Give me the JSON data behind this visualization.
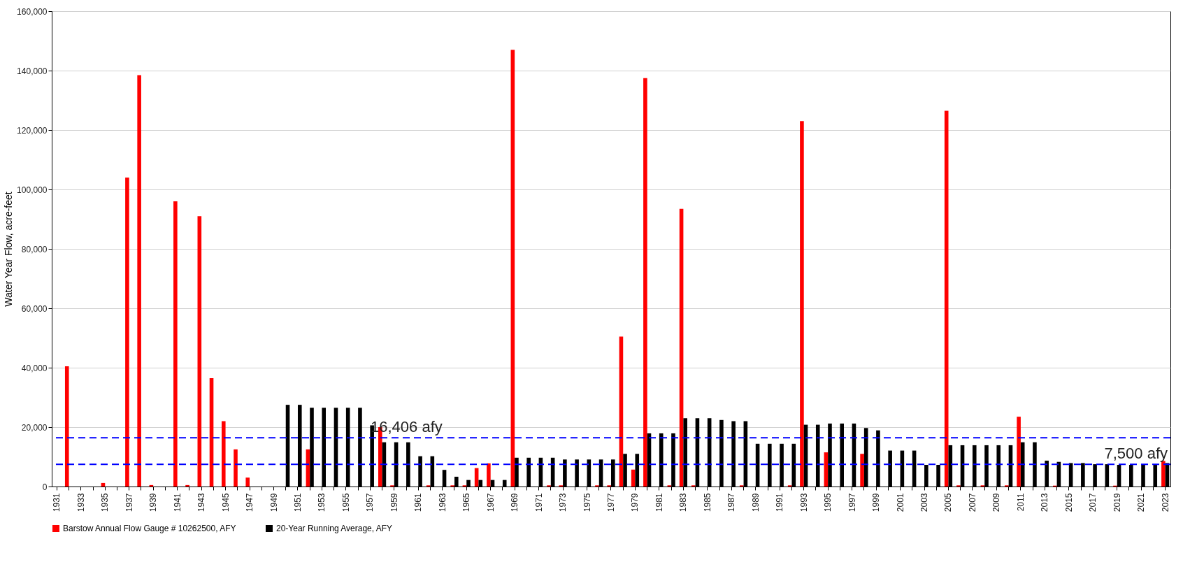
{
  "chart_data": {
    "type": "bar",
    "ylabel": "Water Year Flow, acre-feet",
    "categories": [
      "1931",
      null,
      "1933",
      null,
      "1935",
      null,
      "1937",
      null,
      "1939",
      null,
      "1941",
      null,
      "1943",
      null,
      "1945",
      null,
      "1947",
      null,
      "1949",
      null,
      "1951",
      null,
      "1953",
      null,
      "1955",
      null,
      "1957",
      null,
      "1959",
      null,
      "1961",
      null,
      "1963",
      null,
      "1965",
      null,
      "1967",
      null,
      "1969",
      null,
      "1971",
      null,
      "1973",
      null,
      "1975",
      null,
      "1977",
      null,
      "1979",
      null,
      "1981",
      null,
      "1983",
      null,
      "1985",
      null,
      "1987",
      null,
      "1989",
      null,
      "1991",
      null,
      "1993",
      null,
      "1995",
      null,
      "1997",
      null,
      "1999",
      null,
      "2001",
      null,
      "2003",
      null,
      "2005",
      null,
      "2007",
      null,
      "2009",
      null,
      "2011",
      null,
      "2013",
      null,
      "2015",
      null,
      "2017",
      null,
      "2019",
      null,
      "2021",
      null,
      "2023"
    ],
    "series": [
      {
        "name": "Barstow Annual Flow Gauge # 10262500, AFY",
        "color": "#ff0000",
        "values": [
          0,
          40500,
          0,
          0,
          1200,
          0,
          104000,
          138500,
          500,
          0,
          96000,
          500,
          91000,
          36500,
          22000,
          12500,
          3000,
          0,
          0,
          0,
          0,
          12500,
          0,
          0,
          0,
          0,
          0,
          20000,
          400,
          0,
          0,
          400,
          0,
          400,
          400,
          6200,
          7800,
          0,
          147000,
          0,
          0,
          400,
          400,
          0,
          0,
          400,
          400,
          50500,
          5700,
          137500,
          0,
          400,
          93500,
          400,
          0,
          0,
          0,
          400,
          0,
          0,
          0,
          400,
          123000,
          0,
          11500,
          0,
          0,
          11000,
          0,
          0,
          0,
          0,
          0,
          0,
          126500,
          400,
          0,
          400,
          0,
          400,
          23500,
          0,
          0,
          300,
          0,
          0,
          0,
          0,
          300,
          0,
          0,
          0,
          8600
        ]
      },
      {
        "name": "20-Year Running Average, AFY",
        "color": "#000000",
        "values": [
          null,
          null,
          null,
          null,
          null,
          null,
          null,
          null,
          null,
          null,
          null,
          null,
          null,
          null,
          null,
          null,
          null,
          null,
          null,
          27500,
          27500,
          26500,
          26500,
          26500,
          26500,
          26500,
          20600,
          14900,
          14900,
          14900,
          10200,
          10200,
          5600,
          3300,
          2200,
          2200,
          2200,
          2200,
          9700,
          9700,
          9700,
          9700,
          9100,
          9100,
          9100,
          9100,
          9100,
          11000,
          11000,
          17900,
          17900,
          17900,
          23000,
          23000,
          23000,
          22400,
          22000,
          22000,
          14400,
          14400,
          14400,
          14400,
          20800,
          20800,
          21200,
          21200,
          21200,
          19700,
          18900,
          12100,
          12100,
          12100,
          7300,
          7300,
          13900,
          13900,
          13900,
          13900,
          13900,
          13900,
          14900,
          14900,
          8700,
          8300,
          7900,
          7900,
          7500,
          7500,
          7300,
          7300,
          7300,
          7300,
          7900
        ]
      }
    ],
    "ylim": [
      0,
      160000
    ],
    "yticks": [
      0,
      {
        "value": 20000,
        "label": "20,000"
      },
      {
        "value": 40000,
        "label": "40,000"
      },
      {
        "value": 60000,
        "label": "60,000"
      },
      {
        "value": 80000,
        "label": "80,000"
      },
      {
        "value": 100000,
        "label": "100,000"
      },
      {
        "value": 120000,
        "label": "120,000"
      },
      {
        "value": 140000,
        "label": "140,000"
      },
      {
        "value": 160000,
        "label": "160,000"
      }
    ],
    "grid": "y",
    "legend": "bottom",
    "ref_lines": [
      {
        "axis": "y",
        "value": 16406,
        "label": "16,406 afy",
        "color": "#0000ff",
        "line_style": "dashed"
      },
      {
        "axis": "y",
        "value": 7500,
        "label": "7,500 afy",
        "color": "#0000ff",
        "line_style": "dashed"
      }
    ]
  }
}
